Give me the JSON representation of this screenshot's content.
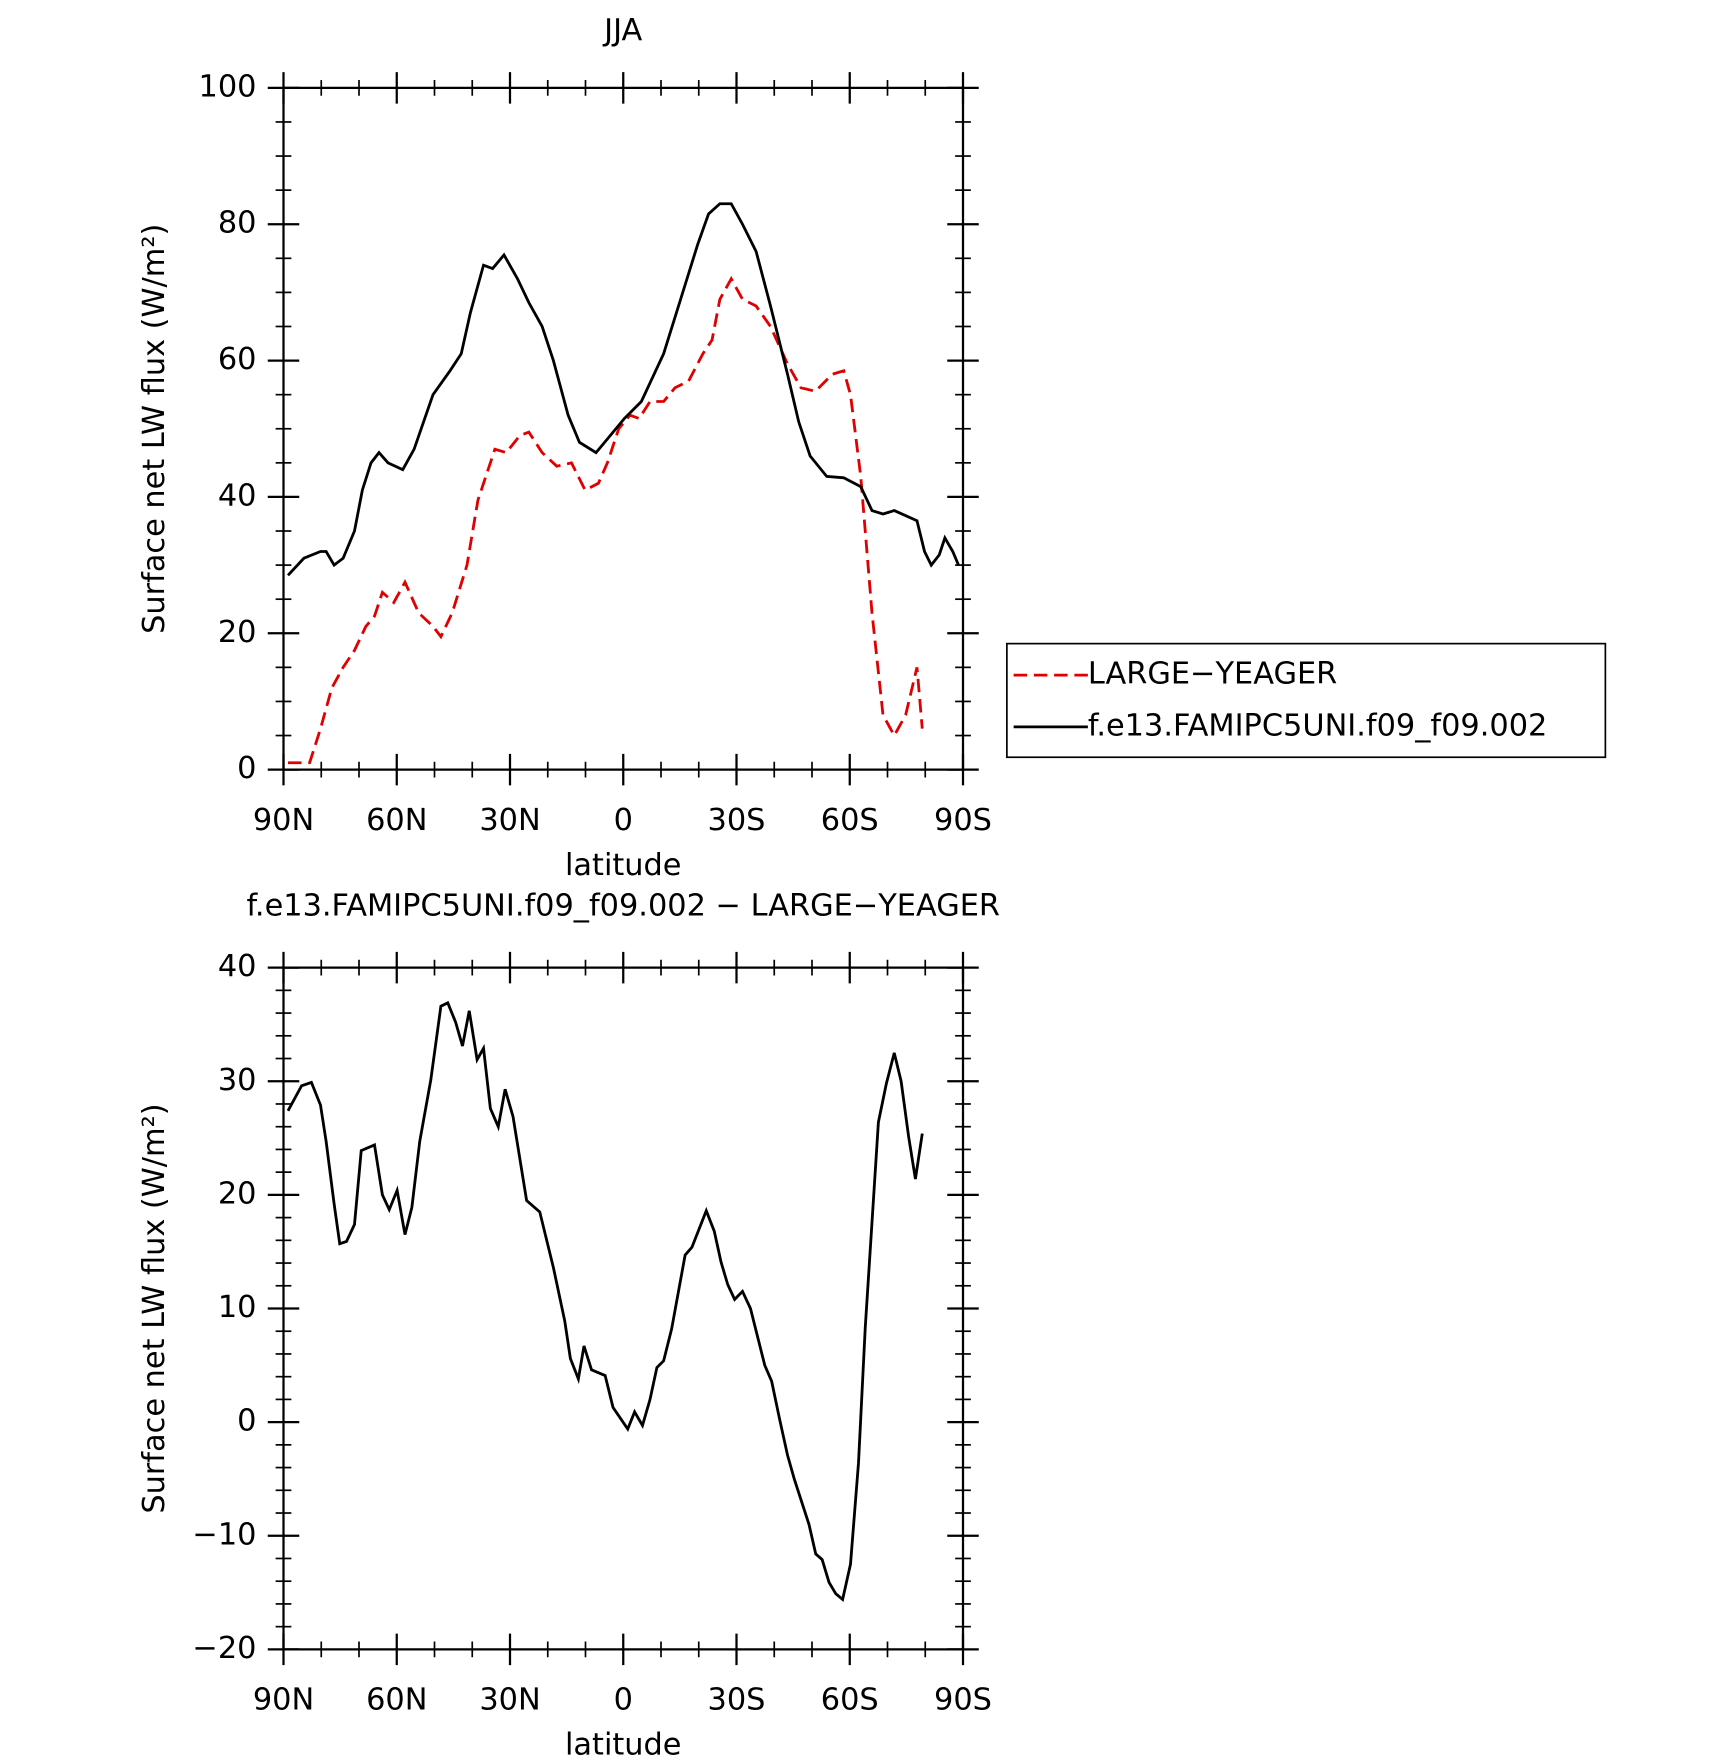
{
  "chart_data": [
    {
      "type": "line",
      "title": "JJA",
      "xlabel": "latitude",
      "ylabel": "Surface net LW flux (W/m²)",
      "xlim": [
        90,
        -90
      ],
      "ylim": [
        0,
        100
      ],
      "xticks": [
        {
          "value": 90,
          "label": "90N"
        },
        {
          "value": 60,
          "label": "60N"
        },
        {
          "value": 30,
          "label": "30N"
        },
        0,
        {
          "value": -30,
          "label": "30S"
        },
        {
          "value": -60,
          "label": "60S"
        },
        {
          "value": -90,
          "label": "90S"
        }
      ],
      "xminorticks": [
        80,
        70,
        50,
        40,
        20,
        10,
        -10,
        -20,
        -40,
        -50,
        -70,
        -80
      ],
      "yticks": [
        0,
        20,
        40,
        60,
        80,
        100
      ],
      "yminorticks": [
        5,
        10,
        15,
        25,
        30,
        35,
        45,
        50,
        55,
        65,
        70,
        75,
        85,
        90,
        95
      ],
      "legend": "outside-right",
      "series": [
        {
          "name": "LARGE−YEAGER",
          "color": "#e00000",
          "dash": true,
          "x": [
            88.8,
            83.1,
            80.2,
            77.2,
            74.2,
            71.2,
            68.2,
            65.9,
            63.8,
            60.8,
            57.8,
            54.2,
            50.4,
            48.3,
            45.3,
            41.4,
            38.5,
            34.0,
            31.0,
            27.4,
            25.0,
            21.5,
            17.6,
            13.7,
            10.1,
            6.6,
            4.2,
            1.2,
            -1.8,
            -4.2,
            -7.1,
            -10.7,
            -13.7,
            -17.3,
            -21.1,
            -23.5,
            -25.6,
            -28.6,
            -31.6,
            -35.2,
            -39.0,
            -43.5,
            -47.1,
            -50.9,
            -55.4,
            -58.4,
            -60.2,
            -62.9,
            -65.9,
            -68.8,
            -71.8,
            -74.8,
            -77.8,
            -79.2
          ],
          "values": [
            1,
            1,
            6,
            12,
            15,
            17.5,
            21,
            22.5,
            26,
            24.5,
            27.5,
            23,
            21,
            19.5,
            23,
            30,
            39.5,
            47,
            46.5,
            49,
            49.5,
            46.5,
            44.5,
            45,
            41,
            42,
            45,
            50,
            52,
            51.5,
            54,
            54,
            56,
            57,
            61,
            63,
            69,
            72,
            69,
            68,
            65,
            59.5,
            56,
            55.5,
            58,
            58.5,
            55,
            43,
            23,
            8,
            5,
            8,
            15,
            6
          ]
        },
        {
          "name": "f.e13.FAMIPC5UNI.f09_f09.002",
          "color": "#000000",
          "dash": false,
          "x": [
            88.8,
            84.6,
            80.2,
            78.7,
            76.6,
            74.2,
            71.2,
            69.1,
            66.8,
            64.7,
            62.3,
            58.4,
            55.4,
            50.4,
            45.9,
            42.9,
            40.5,
            37.0,
            34.6,
            31.6,
            28.0,
            25.0,
            21.5,
            18.5,
            14.6,
            11.6,
            7.2,
            4.2,
            -0.3,
            -4.8,
            -10.7,
            -15.2,
            -19.7,
            -22.6,
            -25.6,
            -28.6,
            -31.6,
            -35.2,
            -39.0,
            -43.5,
            -46.5,
            -49.5,
            -53.9,
            -58.4,
            -62.9,
            -65.9,
            -68.8,
            -71.8,
            -77.8,
            -79.8,
            -81.6,
            -83.7,
            -85.2,
            -87.3,
            -88.8
          ],
          "values": [
            28.5,
            31,
            32,
            32,
            30,
            31,
            35,
            41,
            45,
            46.5,
            45,
            44,
            47,
            55,
            58.5,
            61,
            67,
            74,
            73.5,
            75.5,
            72,
            68.5,
            65,
            60,
            52,
            48,
            46.5,
            48.5,
            51.5,
            54,
            61,
            69,
            77,
            81.5,
            83,
            83,
            80,
            76,
            68,
            58,
            51,
            46,
            43,
            42.8,
            41.5,
            38,
            37.5,
            38,
            36.5,
            32,
            30,
            31.5,
            34,
            32,
            30
          ]
        }
      ]
    },
    {
      "type": "line",
      "title": "f.e13.FAMIPC5UNI.f09_f09.002 − LARGE−YEAGER",
      "xlabel": "latitude",
      "ylabel": "Surface net LW flux (W/m²)",
      "xlim": [
        90,
        -90
      ],
      "ylim": [
        -20,
        40
      ],
      "xticks": [
        {
          "value": 90,
          "label": "90N"
        },
        {
          "value": 60,
          "label": "60N"
        },
        {
          "value": 30,
          "label": "30N"
        },
        0,
        {
          "value": -30,
          "label": "30S"
        },
        {
          "value": -60,
          "label": "60S"
        },
        {
          "value": -90,
          "label": "90S"
        }
      ],
      "xminorticks": [
        80,
        70,
        50,
        40,
        20,
        10,
        -10,
        -20,
        -40,
        -50,
        -70,
        -80
      ],
      "yticks": [
        {
          "value": -20,
          "label": "−20"
        },
        {
          "value": -10,
          "label": "−10"
        },
        0,
        10,
        20,
        30,
        40
      ],
      "yminorticks": [
        -18,
        -16,
        -14,
        -12,
        -8,
        -6,
        -4,
        -2,
        2,
        4,
        6,
        8,
        12,
        14,
        16,
        18,
        22,
        24,
        26,
        28,
        32,
        34,
        36,
        38
      ],
      "series": [
        {
          "color": "#000000",
          "dash": false,
          "x": [
            88.8,
            85.2,
            82.6,
            80.2,
            78.7,
            76.6,
            75.1,
            73.3,
            71.2,
            69.4,
            65.9,
            63.8,
            62.0,
            59.9,
            57.8,
            56.0,
            53.9,
            51.0,
            48.3,
            46.5,
            44.4,
            42.6,
            40.8,
            38.7,
            37.0,
            35.2,
            33.1,
            31.3,
            29.2,
            25.6,
            22.1,
            18.5,
            15.5,
            14.0,
            11.9,
            10.4,
            8.4,
            4.8,
            2.7,
            -1.2,
            -3.0,
            -5.1,
            -7.1,
            -8.9,
            -10.7,
            -12.8,
            -16.4,
            -18.2,
            -22.0,
            -24.1,
            -25.9,
            -27.7,
            -29.5,
            -31.6,
            -33.7,
            -37.5,
            -39.3,
            -41.4,
            -43.5,
            -45.3,
            -49.2,
            -51.0,
            -52.7,
            -54.5,
            -56.3,
            -58.1,
            -60.2,
            -62.3,
            -64.1,
            -67.6,
            -69.7,
            -71.8,
            -73.6,
            -75.6,
            -77.4,
            -79.2
          ],
          "values": [
            27.4,
            29.6,
            29.9,
            27.9,
            24.7,
            19.2,
            15.7,
            15.9,
            17.4,
            23.9,
            24.4,
            20.0,
            18.7,
            20.4,
            16.5,
            18.9,
            24.7,
            30.1,
            36.6,
            36.9,
            35.2,
            33.1,
            36.2,
            31.9,
            32.9,
            27.6,
            26.0,
            29.3,
            26.9,
            19.5,
            18.5,
            13.6,
            8.9,
            5.6,
            3.8,
            6.7,
            4.6,
            4.1,
            1.3,
            -0.6,
            0.9,
            -0.3,
            2.0,
            4.8,
            5.4,
            8.2,
            14.7,
            15.4,
            18.6,
            16.8,
            14.1,
            12.1,
            10.8,
            11.5,
            10.0,
            5.0,
            3.6,
            0.3,
            -2.9,
            -5.0,
            -9.0,
            -11.6,
            -12.1,
            -14.1,
            -15.1,
            -15.6,
            -12.5,
            -3.6,
            8.3,
            26.4,
            29.8,
            32.5,
            30.0,
            25.1,
            21.4,
            25.4
          ]
        }
      ]
    }
  ]
}
